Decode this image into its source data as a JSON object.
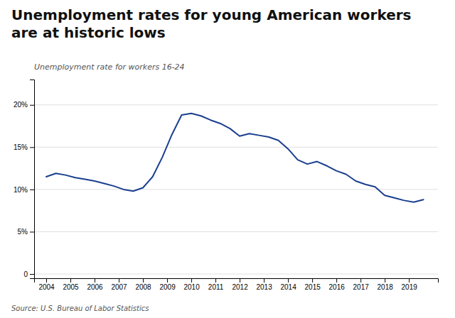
{
  "chart_data": {
    "type": "line",
    "title": "Unemployment rates for young American workers\nare at historic lows",
    "subtitle": "Unemployment rate for workers 16-24",
    "source": "Source: U.S. Bureau of Labor Statistics",
    "color": "#1a3f8f",
    "x": [
      2004.0,
      2004.4,
      2004.8,
      2005.2,
      2005.6,
      2006.0,
      2006.4,
      2006.8,
      2007.2,
      2007.6,
      2008.0,
      2008.4,
      2008.8,
      2009.2,
      2009.6,
      2010.0,
      2010.4,
      2010.8,
      2011.2,
      2011.6,
      2012.0,
      2012.4,
      2012.8,
      2013.2,
      2013.6,
      2014.0,
      2014.4,
      2014.8,
      2015.2,
      2015.6,
      2016.0,
      2016.4,
      2016.8,
      2017.2,
      2017.6,
      2018.0,
      2018.4,
      2018.8,
      2019.2,
      2019.6
    ],
    "values": [
      11.5,
      11.9,
      11.7,
      11.4,
      11.2,
      11.0,
      10.7,
      10.4,
      10.0,
      9.8,
      10.2,
      11.5,
      13.8,
      16.5,
      18.8,
      19.0,
      18.7,
      18.2,
      17.8,
      17.2,
      16.3,
      16.6,
      16.4,
      16.2,
      15.8,
      14.8,
      13.5,
      13.0,
      13.3,
      12.8,
      12.2,
      11.8,
      11.0,
      10.6,
      10.3,
      9.3,
      9.0,
      8.7,
      8.5,
      8.8
    ],
    "xlim": [
      2003.5,
      2020.2
    ],
    "xticks": [
      2004,
      2005,
      2006,
      2007,
      2008,
      2009,
      2010,
      2011,
      2012,
      2013,
      2014,
      2015,
      2016,
      2017,
      2018,
      2019
    ],
    "ylim": [
      -0.5,
      23
    ],
    "yticks": [
      0,
      {
        "value": 5,
        "label": "5%"
      },
      {
        "value": 10,
        "label": "10%"
      },
      {
        "value": 15,
        "label": "15%"
      },
      {
        "value": 20,
        "label": "20%"
      }
    ],
    "grid": true
  }
}
